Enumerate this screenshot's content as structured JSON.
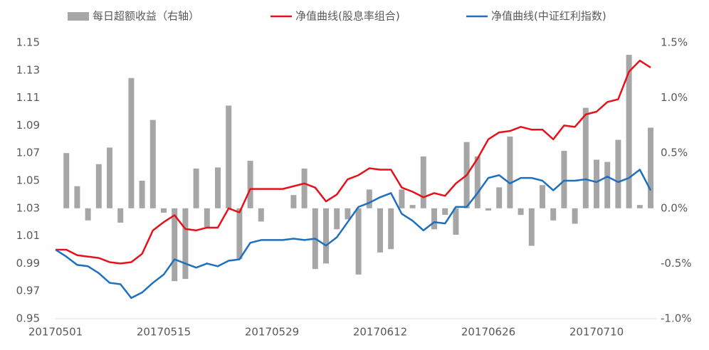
{
  "chart_data": {
    "type": "bar-line",
    "categories": [
      "20170501",
      null,
      null,
      null,
      null,
      null,
      null,
      null,
      null,
      null,
      "20170515",
      null,
      null,
      null,
      null,
      null,
      null,
      null,
      null,
      null,
      "20170529",
      null,
      null,
      null,
      null,
      null,
      null,
      null,
      null,
      null,
      "20170612",
      null,
      null,
      null,
      null,
      null,
      null,
      null,
      null,
      null,
      "20170626",
      null,
      null,
      null,
      null,
      null,
      null,
      null,
      null,
      null,
      "20170710",
      null,
      null,
      null,
      null,
      null
    ],
    "series": [
      {
        "name": "每日超额收益（右轴）",
        "type": "bar",
        "axis": "y2",
        "color": "#a6a6a6",
        "values": [
          null,
          0.5,
          0.2,
          -0.11,
          0.4,
          0.55,
          -0.13,
          1.18,
          0.25,
          0.8,
          -0.04,
          -0.66,
          -0.64,
          0.36,
          -0.17,
          0.37,
          0.93,
          -0.46,
          0.43,
          -0.12,
          0.0,
          0.0,
          0.12,
          0.36,
          -0.55,
          -0.5,
          -0.19,
          -0.1,
          -0.6,
          0.17,
          -0.4,
          -0.37,
          0.17,
          0.03,
          0.47,
          -0.19,
          -0.06,
          -0.24,
          0.6,
          0.47,
          -0.02,
          0.19,
          0.65,
          -0.06,
          -0.34,
          0.21,
          -0.11,
          0.52,
          -0.14,
          0.91,
          0.44,
          0.42,
          0.62,
          1.39,
          0.03,
          0.73
        ]
      },
      {
        "name": "净值曲线(股息率组合)",
        "type": "line",
        "color": "#e8101a",
        "values": [
          1.0,
          1.0,
          0.996,
          0.995,
          0.994,
          0.991,
          0.99,
          0.991,
          0.997,
          1.014,
          1.02,
          1.025,
          1.015,
          1.014,
          1.016,
          1.016,
          1.03,
          1.027,
          1.044,
          1.044,
          1.044,
          1.044,
          1.046,
          1.048,
          1.045,
          1.035,
          1.04,
          1.051,
          1.054,
          1.059,
          1.058,
          1.058,
          1.045,
          1.042,
          1.038,
          1.041,
          1.039,
          1.048,
          1.054,
          1.066,
          1.08,
          1.085,
          1.086,
          1.089,
          1.087,
          1.087,
          1.08,
          1.09,
          1.089,
          1.098,
          1.1,
          1.107,
          1.109,
          1.129,
          1.137,
          1.132
        ]
      },
      {
        "name": "净值曲线(中证红利指数)",
        "type": "line",
        "color": "#1f6fbf",
        "values": [
          1.0,
          0.995,
          0.989,
          0.988,
          0.983,
          0.976,
          0.975,
          0.965,
          0.969,
          0.976,
          0.982,
          0.993,
          0.99,
          0.987,
          0.99,
          0.988,
          0.992,
          0.993,
          1.005,
          1.007,
          1.007,
          1.007,
          1.008,
          1.007,
          1.008,
          1.003,
          1.009,
          1.02,
          1.031,
          1.034,
          1.038,
          1.041,
          1.026,
          1.021,
          1.014,
          1.02,
          1.019,
          1.031,
          1.031,
          1.041,
          1.052,
          1.054,
          1.048,
          1.052,
          1.052,
          1.05,
          1.043,
          1.05,
          1.05,
          1.051,
          1.049,
          1.053,
          1.049,
          1.052,
          1.058,
          1.043
        ]
      }
    ],
    "ylim": [
      0.95,
      1.15
    ],
    "yticks": [
      0.95,
      0.97,
      0.99,
      1.01,
      1.03,
      1.05,
      1.07,
      1.09,
      1.11,
      1.13,
      1.15
    ],
    "y2lim": [
      -1.0,
      1.5
    ],
    "y2ticks": [
      {
        "value": -1.0,
        "label": "-1.0%"
      },
      {
        "value": -0.5,
        "label": "-0.5%"
      },
      {
        "value": 0,
        "label": "0.0%"
      },
      {
        "value": 0.5,
        "label": "0.5%"
      },
      {
        "value": 1.0,
        "label": "1.0%"
      },
      {
        "value": 1.5,
        "label": "1.5%"
      }
    ],
    "legend": "top",
    "grid": false
  }
}
